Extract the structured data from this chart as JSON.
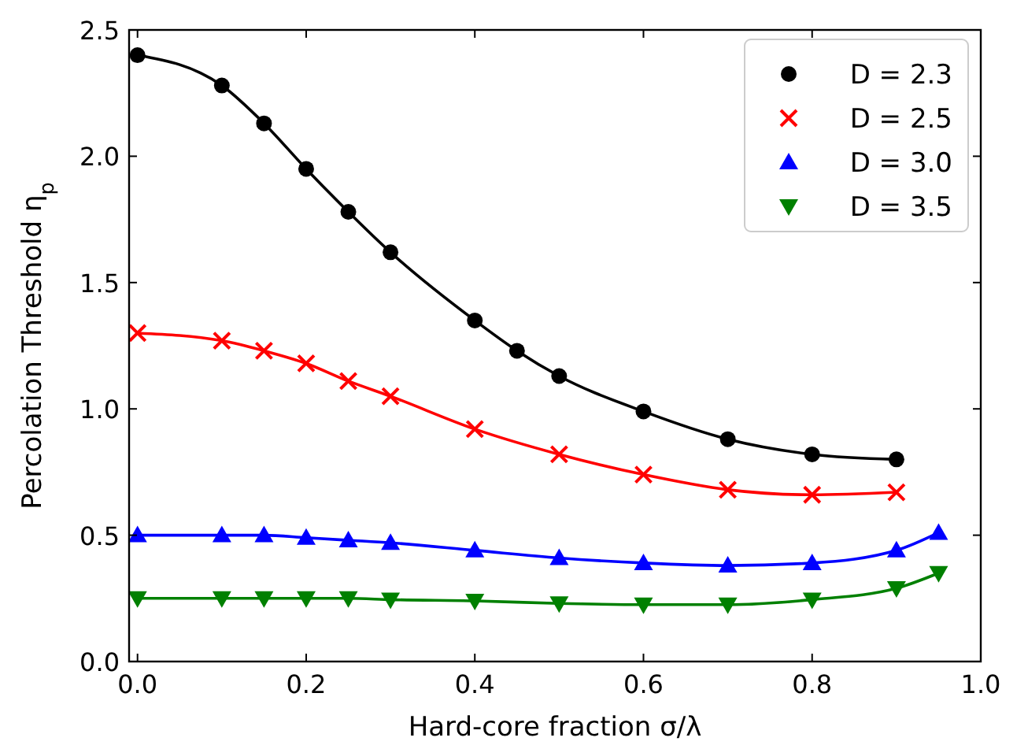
{
  "chart_data": {
    "type": "line",
    "xlabel": "Hard-core fraction σ/λ",
    "ylabel": "Percolation Threshold η$_{p}$",
    "xlim": [
      -0.01,
      1.0
    ],
    "ylim": [
      0,
      2.5
    ],
    "xticks": [
      {
        "value": 0,
        "label": "0.0"
      },
      {
        "value": 0.2,
        "label": "0.2"
      },
      {
        "value": 0.4,
        "label": "0.4"
      },
      {
        "value": 0.6,
        "label": "0.6"
      },
      {
        "value": 0.8,
        "label": "0.8"
      },
      {
        "value": 1,
        "label": "1.0"
      }
    ],
    "yticks": [
      {
        "value": 0,
        "label": "0.0"
      },
      {
        "value": 0.5,
        "label": "0.5"
      },
      {
        "value": 1,
        "label": "1.0"
      },
      {
        "value": 1.5,
        "label": "1.5"
      },
      {
        "value": 2,
        "label": "2.0"
      },
      {
        "value": 2.5,
        "label": "2.5"
      }
    ],
    "legend": "top right",
    "grid": false,
    "series": [
      {
        "name": "D = 2.3",
        "color": "#000000",
        "marker": "circle",
        "x": [
          0,
          0.1,
          0.15,
          0.2,
          0.25,
          0.3,
          0.4,
          0.45,
          0.5,
          0.6,
          0.7,
          0.8,
          0.9
        ],
        "values": [
          2.4,
          2.28,
          2.13,
          1.95,
          1.78,
          1.62,
          1.35,
          1.23,
          1.13,
          0.99,
          0.88,
          0.82,
          0.8
        ]
      },
      {
        "name": "D = 2.5",
        "color": "#ff0000",
        "marker": "cross",
        "x": [
          0,
          0.1,
          0.15,
          0.2,
          0.25,
          0.3,
          0.4,
          0.5,
          0.6,
          0.7,
          0.8,
          0.9
        ],
        "values": [
          1.3,
          1.27,
          1.23,
          1.18,
          1.11,
          1.05,
          0.92,
          0.82,
          0.74,
          0.68,
          0.66,
          0.67
        ]
      },
      {
        "name": "D = 3.0",
        "color": "#0000ff",
        "marker": "triangle",
        "x": [
          0,
          0.1,
          0.15,
          0.2,
          0.25,
          0.3,
          0.4,
          0.5,
          0.6,
          0.7,
          0.8,
          0.9,
          0.95
        ],
        "values": [
          0.5,
          0.5,
          0.5,
          0.49,
          0.48,
          0.47,
          0.44,
          0.41,
          0.39,
          0.38,
          0.39,
          0.44,
          0.51
        ]
      },
      {
        "name": "D = 3.5",
        "color": "#008000",
        "marker": "triangle-down",
        "x": [
          0,
          0.1,
          0.15,
          0.2,
          0.25,
          0.3,
          0.4,
          0.5,
          0.6,
          0.7,
          0.8,
          0.9,
          0.95
        ],
        "values": [
          0.25,
          0.25,
          0.25,
          0.25,
          0.25,
          0.245,
          0.24,
          0.23,
          0.225,
          0.225,
          0.245,
          0.29,
          0.35
        ]
      }
    ]
  }
}
